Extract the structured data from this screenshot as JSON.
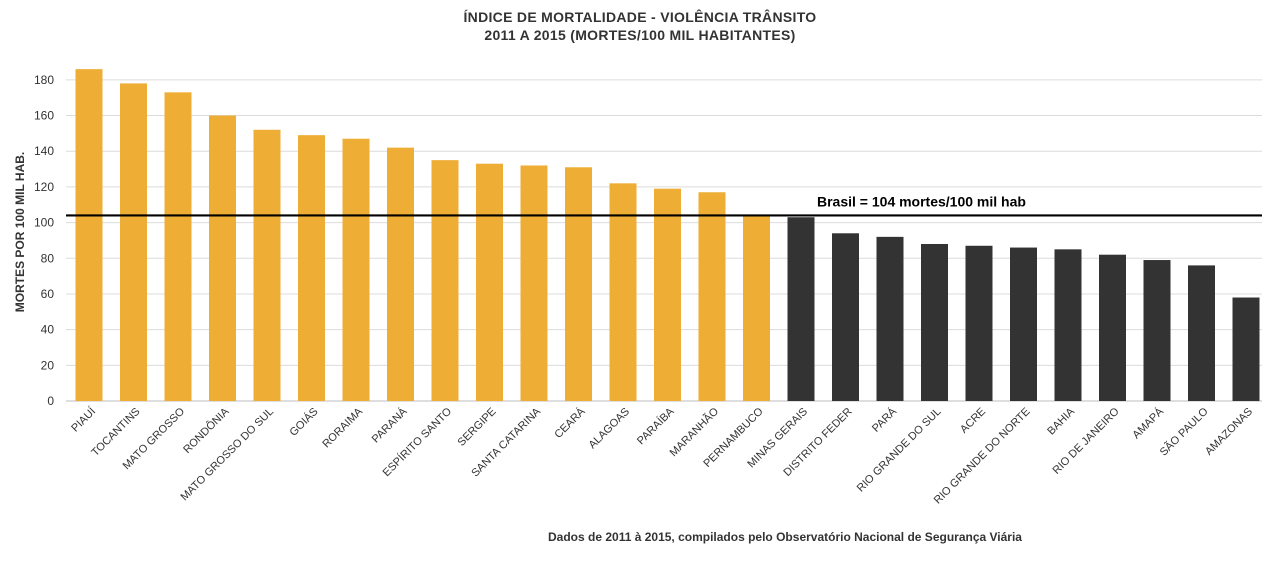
{
  "chart_data": {
    "type": "bar",
    "title": "ÍNDICE DE MORTALIDADE - VIOLÊNCIA TRÂNSITO",
    "subtitle": "2011 A 2015 (MORTES/100 MIL HABITANTES)",
    "ylabel": "MORTES POR 100 MIL HAB.",
    "xlabel": "",
    "ylim": [
      0,
      190
    ],
    "yticks": [
      0,
      20,
      40,
      60,
      80,
      100,
      120,
      140,
      160,
      180
    ],
    "grid": true,
    "categories": [
      "PIAUÍ",
      "TOCANTINS",
      "MATO GROSSO",
      "RONDÔNIA",
      "MATO GROSSO DO SUL",
      "GOIÁS",
      "RORAIMA",
      "PARANÁ",
      "ESPÍRITO SANTO",
      "SERGIPE",
      "SANTA CATARINA",
      "CEARÁ",
      "ALAGOAS",
      "PARAÍBA",
      "MARANHÃO",
      "PERNAMBUCO",
      "MINAS GERAIS",
      "DISTRITO FEDER",
      "PARÁ",
      "RIO GRANDE DO SUL",
      "ACRE",
      "RIO GRANDE DO NORTE",
      "BAHIA",
      "RIO DE JANEIRO",
      "AMAPÁ",
      "SÃO PAULO",
      "AMAZONAS"
    ],
    "values": [
      186,
      178,
      173,
      160,
      152,
      149,
      147,
      142,
      135,
      133,
      132,
      131,
      122,
      119,
      117,
      104,
      103,
      94,
      92,
      88,
      87,
      86,
      85,
      82,
      79,
      76,
      58
    ],
    "reference_line": {
      "value": 104,
      "label": "Brasil = 104 mortes/100 mil hab"
    },
    "colors": {
      "above_reference": "#EEAE36",
      "below_reference": "#333333",
      "reference_line": "#000000",
      "grid": "#dcdcdc"
    }
  },
  "footer": {
    "note": "Dados de 2011 à 2015, compilados pelo Observatório Nacional de Segurança Viária"
  }
}
